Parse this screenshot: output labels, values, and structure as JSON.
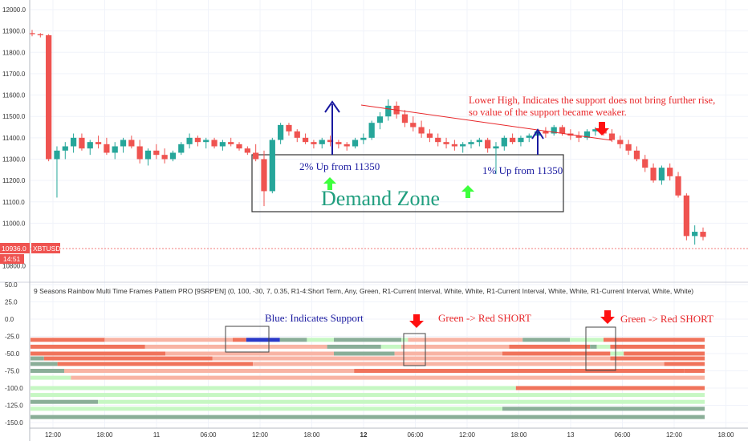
{
  "indicator_title": "9 Seasons Rainbow Multi Time Frames Pattern PRO [9SRPEN] (0, 100, -30, 7, 0.35, R1-4:Short Term, Any, Green, R1-Current Interval, White, White, R1-Current Interval, White, White, R1-Current Interval, White, White)",
  "price_badge": {
    "value": "10936.0",
    "symbol": "XBTUSD",
    "countdown": "14:51"
  },
  "annotations": {
    "lower_high": "Lower High, Indicates the support does not bring further rise,",
    "lower_high_2": "so value of the support became weaker.",
    "up2": "2% Up from 11350",
    "up1": "1% Up from 11350",
    "demand_zone": "Demand Zone",
    "blue_support": "Blue: Indicates Support",
    "short1": "Green -> Red SHORT",
    "short2": "Green -> Red SHORT"
  },
  "colors": {
    "up": "#26a69a",
    "down": "#ef5350",
    "annotation_red": "#e8272a",
    "annotation_blue": "#1a1aa0",
    "zone_text": "#1f9e7e",
    "bright_green": "#3dff3d",
    "bright_red": "#ff1010"
  },
  "chart_data": [
    {
      "type": "candlestick",
      "title": "",
      "xlabel": "",
      "ylabel": "",
      "ylim": [
        10750,
        12000
      ],
      "y_ticks": [
        "12000.0",
        "11900.0",
        "11800.0",
        "11700.0",
        "11600.0",
        "11500.0",
        "11400.0",
        "11300.0",
        "11200.0",
        "11100.0",
        "11000.0",
        "10800.0"
      ],
      "x_ticks": [
        "12:00",
        "18:00",
        "11",
        "06:00",
        "12:00",
        "18:00",
        "12",
        "06:00",
        "12:00",
        "18:00",
        "13",
        "06:00",
        "12:00",
        "18:00"
      ],
      "ohlc": [
        [
          11890,
          11905,
          11875,
          11885
        ],
        [
          11885,
          11890,
          11870,
          11880
        ],
        [
          11880,
          11885,
          11290,
          11300
        ],
        [
          11300,
          11360,
          11120,
          11340
        ],
        [
          11340,
          11380,
          11300,
          11360
        ],
        [
          11360,
          11420,
          11330,
          11400
        ],
        [
          11400,
          11420,
          11340,
          11350
        ],
        [
          11350,
          11390,
          11320,
          11380
        ],
        [
          11380,
          11410,
          11350,
          11370
        ],
        [
          11370,
          11400,
          11320,
          11330
        ],
        [
          11330,
          11380,
          11300,
          11360
        ],
        [
          11360,
          11400,
          11330,
          11390
        ],
        [
          11390,
          11410,
          11350,
          11360
        ],
        [
          11360,
          11390,
          11280,
          11300
        ],
        [
          11300,
          11350,
          11270,
          11340
        ],
        [
          11340,
          11370,
          11300,
          11320
        ],
        [
          11320,
          11350,
          11280,
          11300
        ],
        [
          11300,
          11340,
          11290,
          11330
        ],
        [
          11330,
          11380,
          11320,
          11370
        ],
        [
          11370,
          11420,
          11350,
          11400
        ],
        [
          11400,
          11410,
          11360,
          11380
        ],
        [
          11380,
          11400,
          11350,
          11390
        ],
        [
          11390,
          11400,
          11350,
          11360
        ],
        [
          11360,
          11390,
          11340,
          11380
        ],
        [
          11380,
          11400,
          11360,
          11370
        ],
        [
          11370,
          11380,
          11340,
          11350
        ],
        [
          11350,
          11360,
          11320,
          11330
        ],
        [
          11330,
          11370,
          11290,
          11300
        ],
        [
          11300,
          11340,
          11080,
          11150
        ],
        [
          11150,
          11400,
          11140,
          11390
        ],
        [
          11390,
          11470,
          11370,
          11460
        ],
        [
          11460,
          11470,
          11410,
          11430
        ],
        [
          11430,
          11440,
          11380,
          11400
        ],
        [
          11400,
          11420,
          11370,
          11380
        ],
        [
          11380,
          11390,
          11350,
          11370
        ],
        [
          11370,
          11400,
          11350,
          11390
        ],
        [
          11390,
          11410,
          11360,
          11380
        ],
        [
          11380,
          11390,
          11350,
          11370
        ],
        [
          11370,
          11380,
          11340,
          11360
        ],
        [
          11360,
          11400,
          11350,
          11390
        ],
        [
          11390,
          11420,
          11370,
          11400
        ],
        [
          11400,
          11480,
          11390,
          11470
        ],
        [
          11470,
          11520,
          11440,
          11500
        ],
        [
          11500,
          11580,
          11480,
          11550
        ],
        [
          11550,
          11570,
          11490,
          11510
        ],
        [
          11510,
          11530,
          11450,
          11470
        ],
        [
          11470,
          11500,
          11430,
          11450
        ],
        [
          11450,
          11480,
          11400,
          11420
        ],
        [
          11420,
          11440,
          11380,
          11400
        ],
        [
          11400,
          11420,
          11360,
          11380
        ],
        [
          11380,
          11400,
          11350,
          11370
        ],
        [
          11370,
          11390,
          11340,
          11360
        ],
        [
          11360,
          11380,
          11330,
          11370
        ],
        [
          11370,
          11390,
          11350,
          11380
        ],
        [
          11380,
          11400,
          11360,
          11390
        ],
        [
          11390,
          11400,
          11330,
          11350
        ],
        [
          11350,
          11380,
          11230,
          11360
        ],
        [
          11360,
          11410,
          11340,
          11400
        ],
        [
          11400,
          11420,
          11370,
          11380
        ],
        [
          11380,
          11410,
          11360,
          11400
        ],
        [
          11400,
          11420,
          11380,
          11410
        ],
        [
          11410,
          11440,
          11390,
          11430
        ],
        [
          11430,
          11450,
          11400,
          11420
        ],
        [
          11420,
          11460,
          11410,
          11450
        ],
        [
          11450,
          11460,
          11410,
          11420
        ],
        [
          11420,
          11440,
          11390,
          11410
        ],
        [
          11410,
          11430,
          11380,
          11400
        ],
        [
          11400,
          11440,
          11390,
          11430
        ],
        [
          11430,
          11450,
          11410,
          11440
        ],
        [
          11440,
          11450,
          11410,
          11420
        ],
        [
          11420,
          11440,
          11380,
          11390
        ],
        [
          11390,
          11410,
          11350,
          11370
        ],
        [
          11370,
          11390,
          11320,
          11340
        ],
        [
          11340,
          11360,
          11290,
          11300
        ],
        [
          11300,
          11320,
          11240,
          11260
        ],
        [
          11260,
          11280,
          11190,
          11200
        ],
        [
          11200,
          11270,
          11180,
          11260
        ],
        [
          11260,
          11280,
          11200,
          11220
        ],
        [
          11220,
          11240,
          11120,
          11130
        ],
        [
          11130,
          11140,
          10920,
          10940
        ],
        [
          10940,
          10990,
          10900,
          10960
        ],
        [
          10960,
          10980,
          10920,
          10936
        ]
      ]
    },
    {
      "type": "heatmap",
      "title": "",
      "ylabel": "",
      "ylim": [
        -150,
        50
      ],
      "y_ticks": [
        "50.0",
        "25.0",
        "0.0",
        "-25.0",
        "-50.0",
        "-75.0",
        "-100.0",
        "-125.0",
        "-150.0"
      ],
      "rows": [
        {
          "y": -30,
          "segments": [
            [
              "red",
              0,
              0.11
            ],
            [
              "salmon",
              0.11,
              0.3
            ],
            [
              "red",
              0.3,
              0.32
            ],
            [
              "blue",
              0.32,
              0.37
            ],
            [
              "gray",
              0.37,
              0.41
            ],
            [
              "lightgreen",
              0.41,
              0.45
            ],
            [
              "gray",
              0.45,
              0.55
            ],
            [
              "lightgreen",
              0.55,
              0.56
            ],
            [
              "salmon",
              0.56,
              0.73
            ],
            [
              "gray",
              0.73,
              0.8
            ],
            [
              "lightgreen",
              0.8,
              0.85
            ],
            [
              "red",
              0.85,
              1.0
            ]
          ]
        },
        {
          "y": -40,
          "segments": [
            [
              "red",
              0,
              0.17
            ],
            [
              "salmon",
              0.17,
              0.44
            ],
            [
              "gray",
              0.44,
              0.52
            ],
            [
              "lightgreen",
              0.52,
              0.55
            ],
            [
              "salmon",
              0.55,
              0.71
            ],
            [
              "red",
              0.71,
              0.83
            ],
            [
              "gray",
              0.83,
              0.84
            ],
            [
              "lightgreen",
              0.84,
              0.86
            ],
            [
              "red",
              0.86,
              1.0
            ]
          ]
        },
        {
          "y": -50,
          "segments": [
            [
              "red",
              0,
              0.2
            ],
            [
              "salmon",
              0.2,
              0.45
            ],
            [
              "gray",
              0.45,
              0.54
            ],
            [
              "salmon",
              0.54,
              0.7
            ],
            [
              "red",
              0.7,
              0.86
            ],
            [
              "lightgreen",
              0.86,
              0.88
            ],
            [
              "red",
              0.88,
              1.0
            ]
          ]
        },
        {
          "y": -57,
          "segments": [
            [
              "gray",
              0,
              0.02
            ],
            [
              "red",
              0.02,
              0.27
            ],
            [
              "salmon",
              0.27,
              0.86
            ],
            [
              "red",
              0.86,
              1.0
            ]
          ]
        },
        {
          "y": -65,
          "segments": [
            [
              "gray",
              0,
              0.04
            ],
            [
              "red",
              0.04,
              0.33
            ],
            [
              "salmon",
              0.33,
              0.94
            ],
            [
              "red",
              0.94,
              1.0
            ]
          ]
        },
        {
          "y": -75,
          "segments": [
            [
              "gray",
              0,
              0.05
            ],
            [
              "salmon",
              0.05,
              0.48
            ],
            [
              "red",
              0.48,
              0.97
            ],
            [
              "red",
              0.97,
              1.0
            ]
          ]
        },
        {
          "y": -85,
          "segments": [
            [
              "lightgreen",
              0,
              0.06
            ],
            [
              "salmon",
              0.06,
              1.0
            ]
          ]
        },
        {
          "y": -100,
          "segments": [
            [
              "lightgreen",
              0,
              0.72
            ],
            [
              "red",
              0.72,
              1.0
            ]
          ]
        },
        {
          "y": -110,
          "segments": [
            [
              "lightgreen",
              0,
              1.0
            ]
          ]
        },
        {
          "y": -120,
          "segments": [
            [
              "gray",
              0,
              0.1
            ],
            [
              "lightgreen",
              0.1,
              1.0
            ]
          ]
        },
        {
          "y": -130,
          "segments": [
            [
              "lightgreen",
              0,
              0.7
            ],
            [
              "gray",
              0.7,
              1.0
            ]
          ]
        },
        {
          "y": -142,
          "segments": [
            [
              "gray",
              0,
              1.0
            ]
          ]
        }
      ],
      "segment_colors": {
        "red": "#f0735b",
        "salmon": "#f8b4a4",
        "gray": "#8aae98",
        "lightgreen": "#c6f7c3",
        "blue": "#2a39c8"
      }
    }
  ]
}
